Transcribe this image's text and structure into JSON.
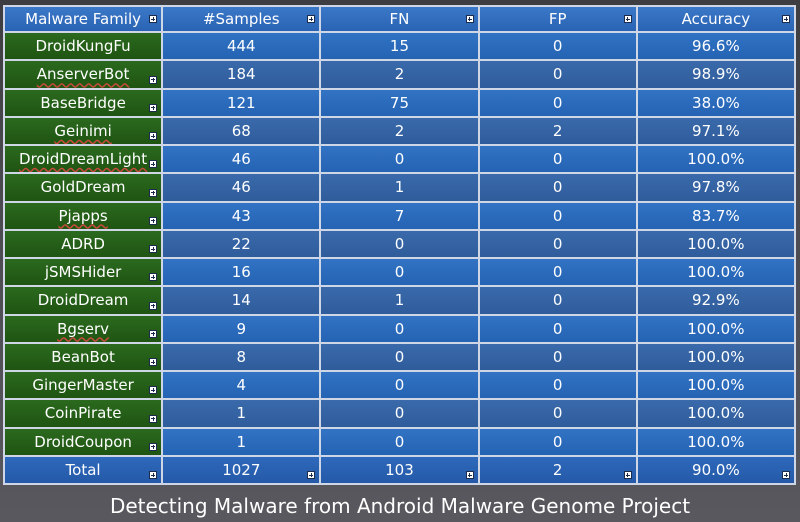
{
  "columns": [
    "Malware Family",
    "#Samples",
    "FN",
    "FP",
    "Accuracy"
  ],
  "rows": [
    {
      "family": "DroidKungFu",
      "samples": "444",
      "fn": "15",
      "fp": "0",
      "accuracy": "96.6%"
    },
    {
      "family": "AnserverBot",
      "samples": "184",
      "fn": "2",
      "fp": "0",
      "accuracy": "98.9%"
    },
    {
      "family": "BaseBridge",
      "samples": "121",
      "fn": "75",
      "fp": "0",
      "accuracy": "38.0%"
    },
    {
      "family": "Geinimi",
      "samples": "68",
      "fn": "2",
      "fp": "2",
      "accuracy": "97.1%"
    },
    {
      "family": "DroidDreamLight",
      "samples": "46",
      "fn": "0",
      "fp": "0",
      "accuracy": "100.0%"
    },
    {
      "family": "GoldDream",
      "samples": "46",
      "fn": "1",
      "fp": "0",
      "accuracy": "97.8%"
    },
    {
      "family": "Pjapps",
      "samples": "43",
      "fn": "7",
      "fp": "0",
      "accuracy": "83.7%"
    },
    {
      "family": "ADRD",
      "samples": "22",
      "fn": "0",
      "fp": "0",
      "accuracy": "100.0%"
    },
    {
      "family": "jSMSHider",
      "samples": "16",
      "fn": "0",
      "fp": "0",
      "accuracy": "100.0%"
    },
    {
      "family": "DroidDream",
      "samples": "14",
      "fn": "1",
      "fp": "0",
      "accuracy": "92.9%"
    },
    {
      "family": "Bgserv",
      "samples": "9",
      "fn": "0",
      "fp": "0",
      "accuracy": "100.0%"
    },
    {
      "family": "BeanBot",
      "samples": "8",
      "fn": "0",
      "fp": "0",
      "accuracy": "100.0%"
    },
    {
      "family": "GingerMaster",
      "samples": "4",
      "fn": "0",
      "fp": "0",
      "accuracy": "100.0%"
    },
    {
      "family": "CoinPirate",
      "samples": "1",
      "fn": "0",
      "fp": "0",
      "accuracy": "100.0%"
    },
    {
      "family": "DroidCoupon",
      "samples": "1",
      "fn": "0",
      "fp": "0",
      "accuracy": "100.0%"
    }
  ],
  "total": {
    "label": "Total",
    "samples": "1027",
    "fn": "103",
    "fp": "2",
    "accuracy": "90.0%"
  },
  "caption": "Detecting Malware from Android Malware Genome Project",
  "colors": {
    "header": "#2f6bbd",
    "family_cell": "#255e18",
    "data_cell": "#2b6bbd",
    "grid_line": "#cfd6e6"
  },
  "icons": {
    "expand": "plus-square-icon"
  }
}
